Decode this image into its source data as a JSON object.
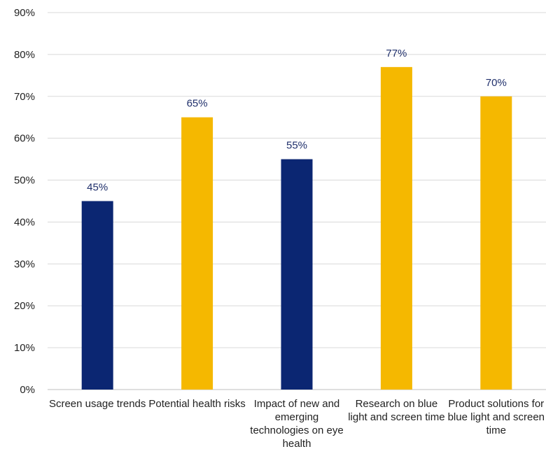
{
  "chart_data": {
    "type": "bar",
    "categories": [
      "Screen usage trends",
      "Potential health risks",
      "Impact of new and emerging technologies on eye health",
      "Research on blue light and screen time",
      "Product solutions for blue light and screen time"
    ],
    "values": [
      45,
      65,
      55,
      77,
      70
    ],
    "data_labels": [
      "45%",
      "65%",
      "55%",
      "77%",
      "70%"
    ],
    "bar_colors": [
      "#0b2672",
      "#f5b800",
      "#0b2672",
      "#f5b800",
      "#f5b800"
    ],
    "ylim": [
      0,
      90
    ],
    "yticks": [
      0,
      10,
      20,
      30,
      40,
      50,
      60,
      70,
      80,
      90
    ],
    "ytick_labels": [
      "0%",
      "10%",
      "20%",
      "30%",
      "40%",
      "50%",
      "60%",
      "70%",
      "80%",
      "90%"
    ],
    "grid": true,
    "legend": "none"
  }
}
